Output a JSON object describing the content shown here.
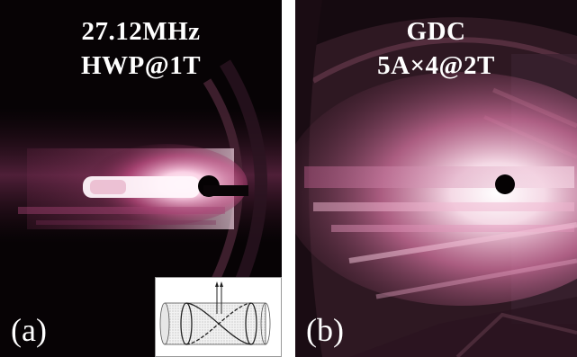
{
  "panels": [
    {
      "title_line1": "27.12MHz",
      "title_line2": "HWP@1T",
      "tag": "(a)"
    },
    {
      "title_line1": "GDC",
      "title_line2": "5A×4@2T",
      "tag": "(b)"
    }
  ],
  "colors": {
    "plasma_core": "#fff4fa",
    "plasma_glow": "#e45a9a",
    "plasma_dim": "#6a2a48",
    "background_dark": "#080406",
    "vessel_wall": "#3a2030"
  },
  "inset": {
    "content": "helical antenna schematic",
    "icon": "helical-antenna-diagram"
  }
}
